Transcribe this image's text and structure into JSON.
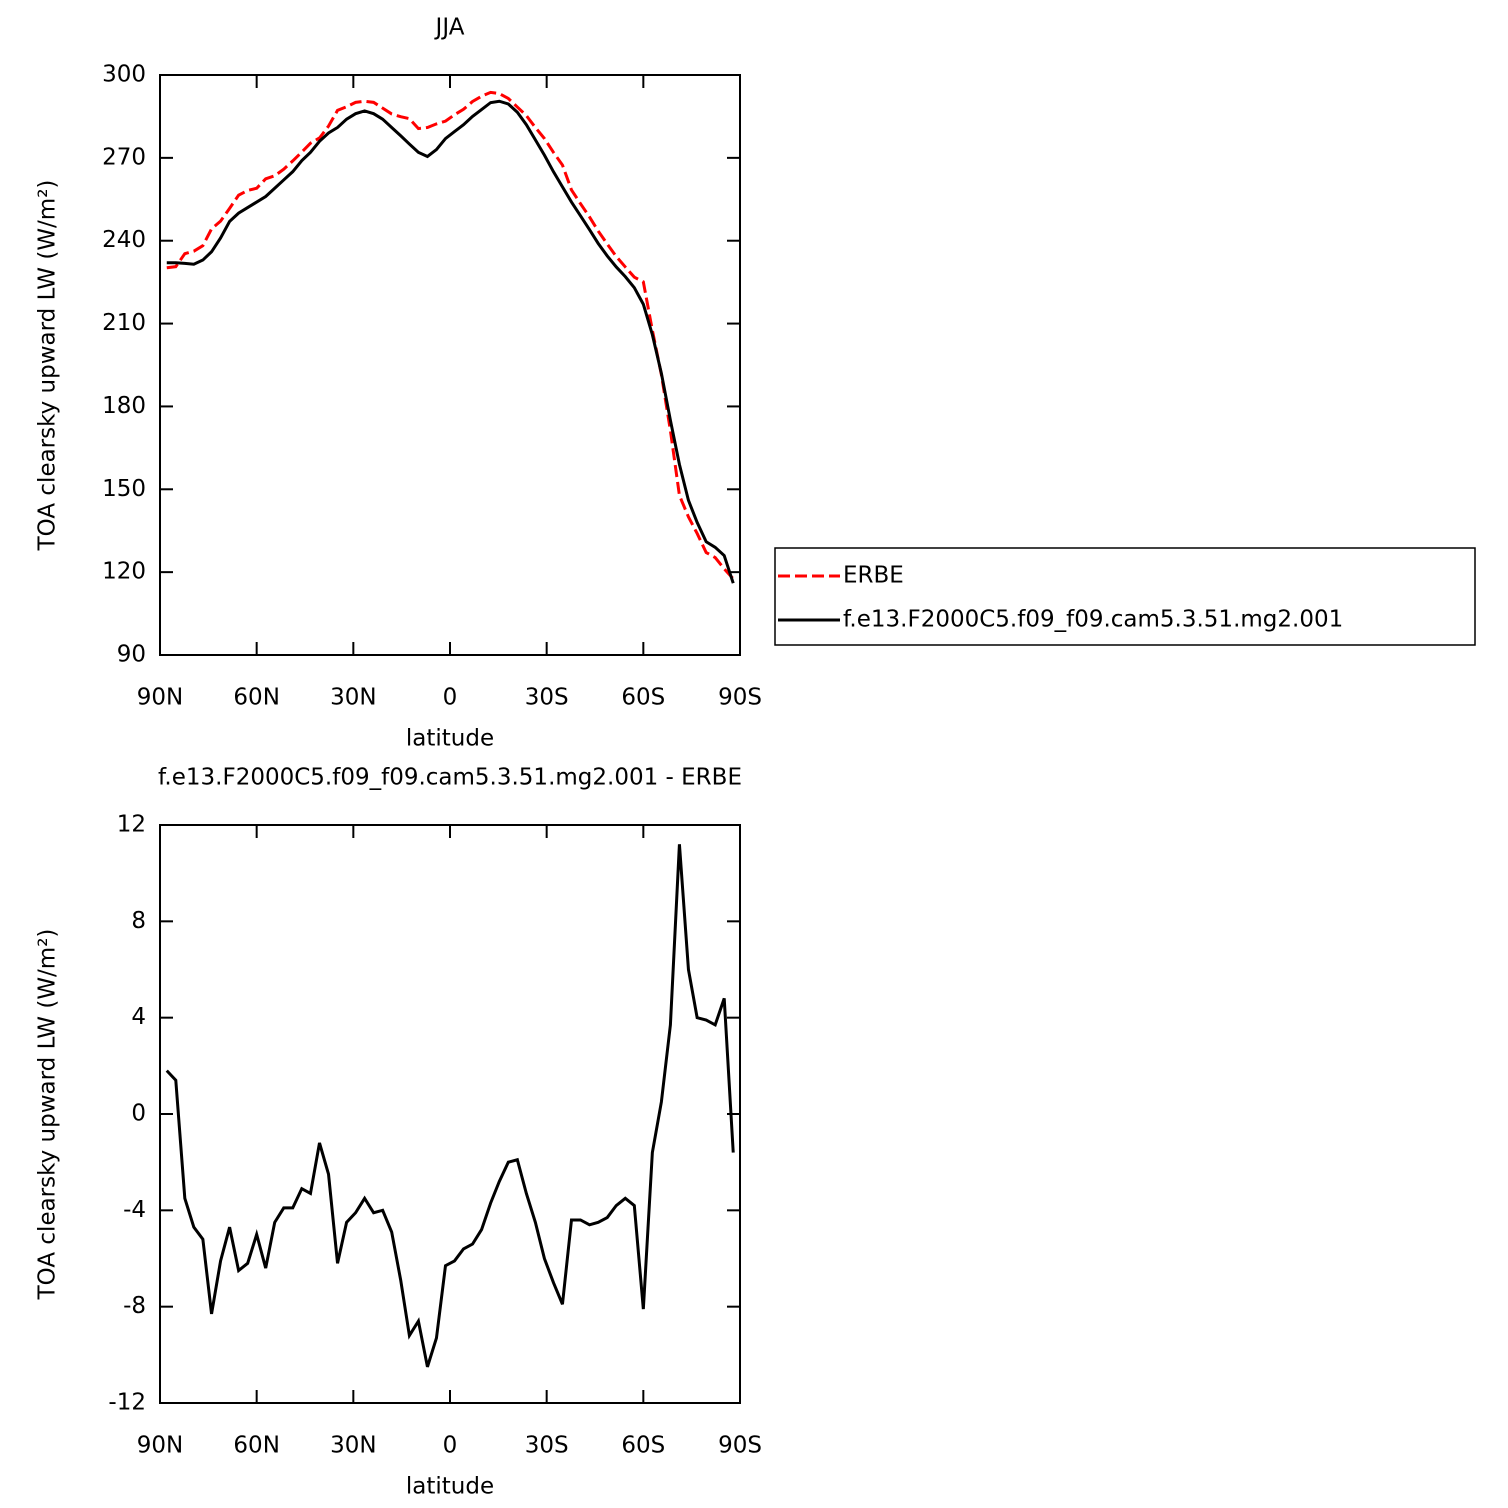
{
  "chart_data": [
    {
      "type": "line",
      "title": "JJA",
      "xlabel": "latitude",
      "ylabel": "TOA clearsky upward LW (W/m²)",
      "x": [
        87.9,
        85.1,
        82.3,
        79.5,
        76.7,
        74.0,
        71.2,
        68.4,
        65.6,
        62.8,
        60.0,
        57.2,
        54.4,
        51.6,
        48.8,
        46.0,
        43.3,
        40.5,
        37.7,
        34.9,
        32.1,
        29.3,
        26.5,
        23.7,
        20.9,
        18.1,
        15.3,
        12.6,
        9.8,
        7.0,
        4.2,
        1.4,
        -1.4,
        -4.2,
        -7.0,
        -9.8,
        -12.6,
        -15.3,
        -18.1,
        -20.9,
        -23.7,
        -26.5,
        -29.3,
        -32.1,
        -34.9,
        -37.7,
        -40.5,
        -43.3,
        -46.0,
        -48.8,
        -51.6,
        -54.4,
        -57.2,
        -60.0,
        -62.8,
        -65.6,
        -68.4,
        -71.2,
        -74.0,
        -76.7,
        -79.5,
        -82.3,
        -85.1,
        -87.9
      ],
      "series": [
        {
          "name": "ERBE",
          "color": "#ff0000",
          "dashed": true,
          "values": [
            230.2,
            230.6,
            235.3,
            236.2,
            238.2,
            244.3,
            247.1,
            251.7,
            256.5,
            258.2,
            259,
            262.4,
            263.5,
            265.9,
            268.9,
            272.1,
            275.3,
            277.2,
            281.5,
            287.2,
            288.5,
            290.1,
            290.5,
            290.1,
            288,
            285.9,
            284.9,
            284.2,
            280.6,
            281,
            282.3,
            283.3,
            285.6,
            287.6,
            290.4,
            292.3,
            293.7,
            293.3,
            291.5,
            288.4,
            285.3,
            281,
            277,
            272,
            267.4,
            258.4,
            253.4,
            248.6,
            243.5,
            238.8,
            234.3,
            230.5,
            226.8,
            225.1,
            207.6,
            191.5,
            171.3,
            147.8,
            140,
            134,
            127.1,
            125.3,
            121.2,
            117.6
          ]
        },
        {
          "name": "f.e13.F2000C5.f09_f09.cam5.3.51.mg2.001",
          "color": "#000000",
          "dashed": false,
          "values": [
            232,
            232,
            231.8,
            231.5,
            233,
            236,
            241,
            247,
            250,
            252,
            254,
            256,
            259,
            262,
            265,
            269,
            272,
            276,
            279,
            281,
            284,
            286,
            287,
            286,
            284,
            281,
            278,
            275,
            272,
            270.5,
            273,
            277,
            279.5,
            282,
            285,
            287.5,
            290,
            290.5,
            289.5,
            286.5,
            282,
            276.5,
            271,
            265,
            259.5,
            254,
            249,
            244,
            239,
            234.5,
            230.5,
            227,
            223,
            217,
            206,
            192,
            175,
            159,
            146,
            138,
            131,
            129,
            126,
            116
          ]
        }
      ],
      "xlim": [
        90,
        -90
      ],
      "ylim": [
        90,
        300
      ],
      "xticks": [
        {
          "value": 90,
          "label": "90N"
        },
        {
          "value": 60,
          "label": "60N"
        },
        {
          "value": 30,
          "label": "30N"
        },
        0,
        {
          "value": -30,
          "label": "30S"
        },
        {
          "value": -60,
          "label": "60S"
        },
        {
          "value": -90,
          "label": "90S"
        }
      ],
      "yticks": [
        90,
        120,
        150,
        180,
        210,
        240,
        270,
        300
      ],
      "legend": "right"
    },
    {
      "type": "line",
      "title": "f.e13.F2000C5.f09_f09.cam5.3.51.mg2.001 - ERBE",
      "xlabel": "latitude",
      "ylabel": "TOA clearsky upward LW (W/m²)",
      "x": [
        87.9,
        85.1,
        82.3,
        79.5,
        76.7,
        74.0,
        71.2,
        68.4,
        65.6,
        62.8,
        60.0,
        57.2,
        54.4,
        51.6,
        48.8,
        46.0,
        43.3,
        40.5,
        37.7,
        34.9,
        32.1,
        29.3,
        26.5,
        23.7,
        20.9,
        18.1,
        15.3,
        12.6,
        9.8,
        7.0,
        4.2,
        1.4,
        -1.4,
        -4.2,
        -7.0,
        -9.8,
        -12.6,
        -15.3,
        -18.1,
        -20.9,
        -23.7,
        -26.5,
        -29.3,
        -32.1,
        -34.9,
        -37.7,
        -40.5,
        -43.3,
        -46.0,
        -48.8,
        -51.6,
        -54.4,
        -57.2,
        -60.0,
        -62.8,
        -65.6,
        -68.4,
        -71.2,
        -74.0,
        -76.7,
        -79.5,
        -82.3,
        -85.1,
        -87.9
      ],
      "color": "#000000",
      "values": [
        1.8,
        1.4,
        -3.5,
        -4.7,
        -5.2,
        -8.3,
        -6.1,
        -4.7,
        -6.5,
        -6.2,
        -5.0,
        -6.4,
        -4.5,
        -3.9,
        -3.9,
        -3.1,
        -3.3,
        -1.2,
        -2.5,
        -6.2,
        -4.5,
        -4.1,
        -3.5,
        -4.1,
        -4.0,
        -4.9,
        -6.9,
        -9.2,
        -8.6,
        -10.5,
        -9.3,
        -6.3,
        -6.1,
        -5.6,
        -5.4,
        -4.8,
        -3.7,
        -2.8,
        -2.0,
        -1.9,
        -3.3,
        -4.5,
        -6.0,
        -7.0,
        -7.9,
        -4.4,
        -4.4,
        -4.6,
        -4.5,
        -4.3,
        -3.8,
        -3.5,
        -3.8,
        -8.1,
        -1.6,
        0.5,
        3.7,
        11.2,
        6.0,
        4.0,
        3.9,
        3.7,
        4.8,
        -1.6
      ],
      "xlim": [
        90,
        -90
      ],
      "ylim": [
        -12,
        12
      ],
      "xticks": [
        {
          "value": 90,
          "label": "90N"
        },
        {
          "value": 60,
          "label": "60N"
        },
        {
          "value": 30,
          "label": "30N"
        },
        0,
        {
          "value": -30,
          "label": "30S"
        },
        {
          "value": -60,
          "label": "60S"
        },
        {
          "value": -90,
          "label": "90S"
        }
      ],
      "yticks": [
        -12,
        -8,
        -4,
        0,
        4,
        8,
        12
      ]
    }
  ]
}
